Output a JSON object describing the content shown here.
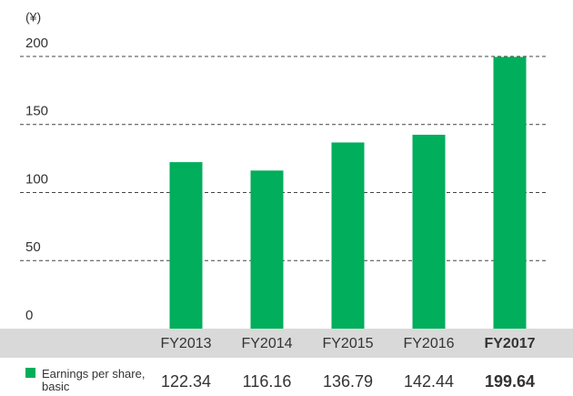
{
  "chart_data": {
    "type": "bar",
    "unit_label": "(¥)",
    "categories": [
      "FY2013",
      "FY2014",
      "FY2015",
      "FY2016",
      "FY2017"
    ],
    "series": [
      {
        "name": "Earnings per share, basic",
        "color": "#00ae5b",
        "values": [
          122.34,
          116.16,
          136.79,
          142.44,
          199.64
        ]
      }
    ],
    "ylim": [
      0,
      200
    ],
    "yticks": [
      0,
      50,
      100,
      150,
      200
    ],
    "grid": true,
    "highlight_last": true
  }
}
